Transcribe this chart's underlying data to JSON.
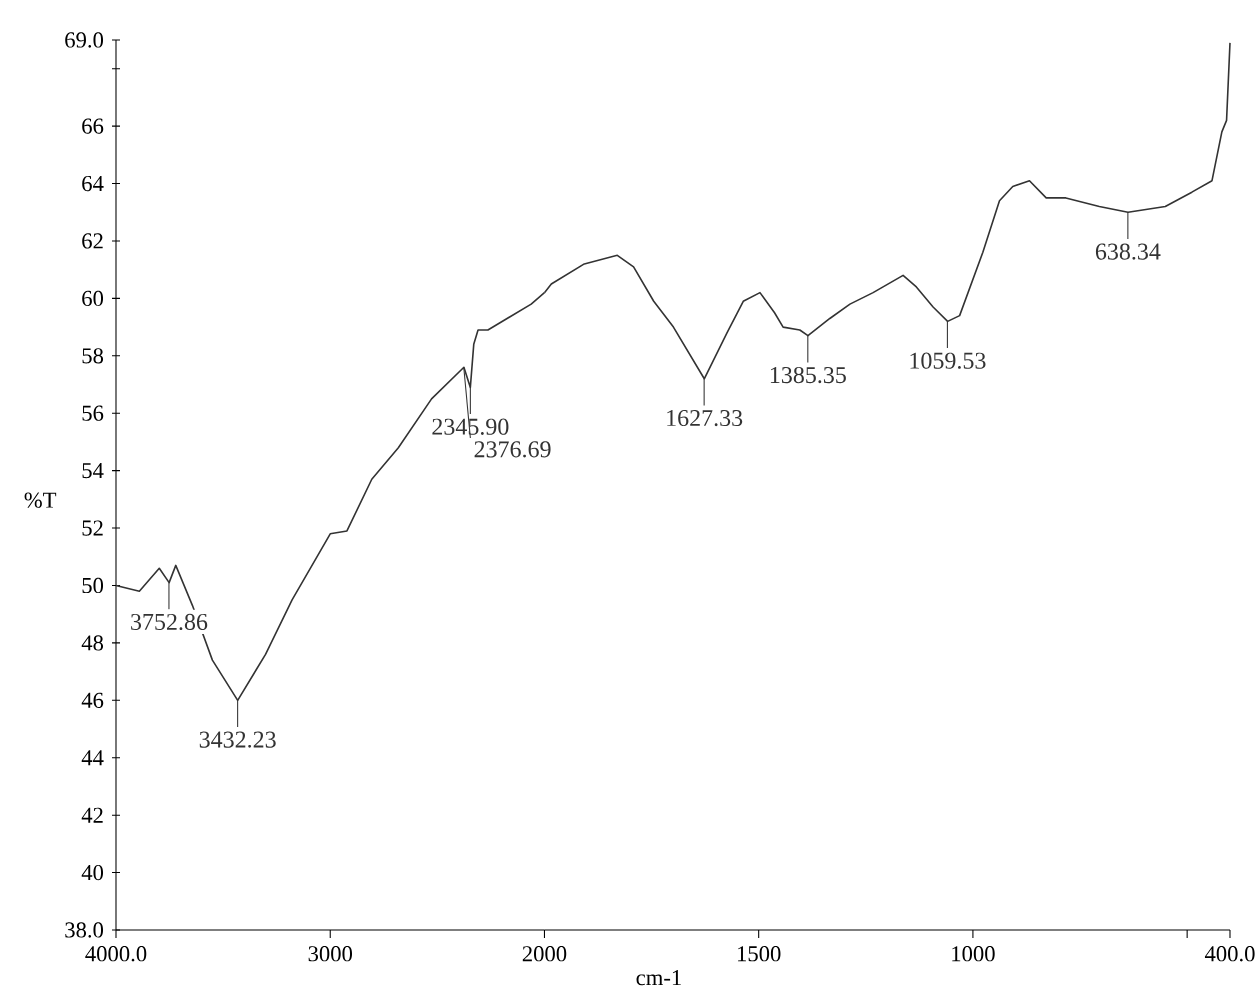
{
  "chart_data": [
    {
      "type": "line",
      "ylabel": "%T",
      "x": [
        4000,
        3891,
        3798,
        3752,
        3721,
        3643,
        3550,
        3432,
        3302,
        3178,
        3000,
        2922,
        2806,
        2682,
        2527,
        2376,
        2346,
        2330,
        2310,
        2264,
        2062,
        2000
      ],
      "series": [
        {
          "color": "#333333",
          "values": [
            50.0,
            49.8,
            50.6,
            50.1,
            50.7,
            49.3,
            47.4,
            46.0,
            47.6,
            49.5,
            51.8,
            51.9,
            53.7,
            54.8,
            56.5,
            57.6,
            56.9,
            58.4,
            58.9,
            58.9,
            59.8,
            60.2
          ]
        }
      ],
      "xlim": [
        4000,
        2000
      ],
      "ylim": [
        38,
        69
      ],
      "xticks": [
        {
          "value": 4000,
          "label": "4000.0"
        },
        3000,
        2000
      ],
      "yticks": [
        {
          "value": 38,
          "label": "38.0"
        },
        40,
        42,
        44,
        46,
        48,
        50,
        52,
        54,
        56,
        58,
        60,
        62,
        64,
        66,
        {
          "value": 68,
          "label": null
        },
        {
          "value": 69,
          "label": "69.0"
        }
      ],
      "annotations": [
        {
          "text": "3752.86",
          "x": 3752.86,
          "y": 50.1
        },
        {
          "text": "3432.23",
          "x": 3432.23,
          "y": 46.0
        },
        {
          "text": "2345.90",
          "x": 2345.9,
          "y": 56.9
        },
        {
          "text": "2376.69",
          "x": 2376.69,
          "y": 57.6
        }
      ]
    },
    {
      "type": "line",
      "xlabel": "cm-1",
      "tick_labels": "x",
      "x": [
        2000,
        1984,
        1907,
        1830,
        1792,
        1745,
        1699,
        1627,
        1574,
        1536,
        1497,
        1463,
        1443,
        1404,
        1385,
        1334,
        1287,
        1233,
        1163,
        1132,
        1093,
        1059,
        1031,
        977,
        938,
        907,
        868,
        829,
        783,
        705,
        638,
        551,
        489,
        442,
        419,
        408,
        400
      ],
      "series": [
        {
          "color": "#333333",
          "values": [
            60.2,
            60.5,
            61.2,
            61.5,
            61.1,
            59.9,
            59.0,
            57.2,
            58.8,
            59.9,
            60.2,
            59.5,
            59.0,
            58.9,
            58.7,
            59.3,
            59.8,
            60.2,
            60.8,
            60.4,
            59.7,
            59.2,
            59.4,
            61.6,
            63.4,
            63.9,
            64.1,
            63.5,
            63.5,
            63.2,
            63.0,
            63.2,
            63.7,
            64.1,
            65.8,
            66.2,
            68.9
          ]
        }
      ],
      "xlim": [
        2000,
        400
      ],
      "ylim": [
        38,
        69
      ],
      "xticks": [
        1500,
        1000,
        {
          "value": 500,
          "label": null
        },
        {
          "value": 400,
          "label": "400.0"
        }
      ],
      "annotations": [
        {
          "text": "1627.33",
          "x": 1627.33,
          "y": 57.2
        },
        {
          "text": "1385.35",
          "x": 1385.35,
          "y": 58.7
        },
        {
          "text": "1059.53",
          "x": 1059.53,
          "y": 59.2
        },
        {
          "text": "638.34",
          "x": 638.34,
          "y": 63.0
        }
      ]
    }
  ]
}
